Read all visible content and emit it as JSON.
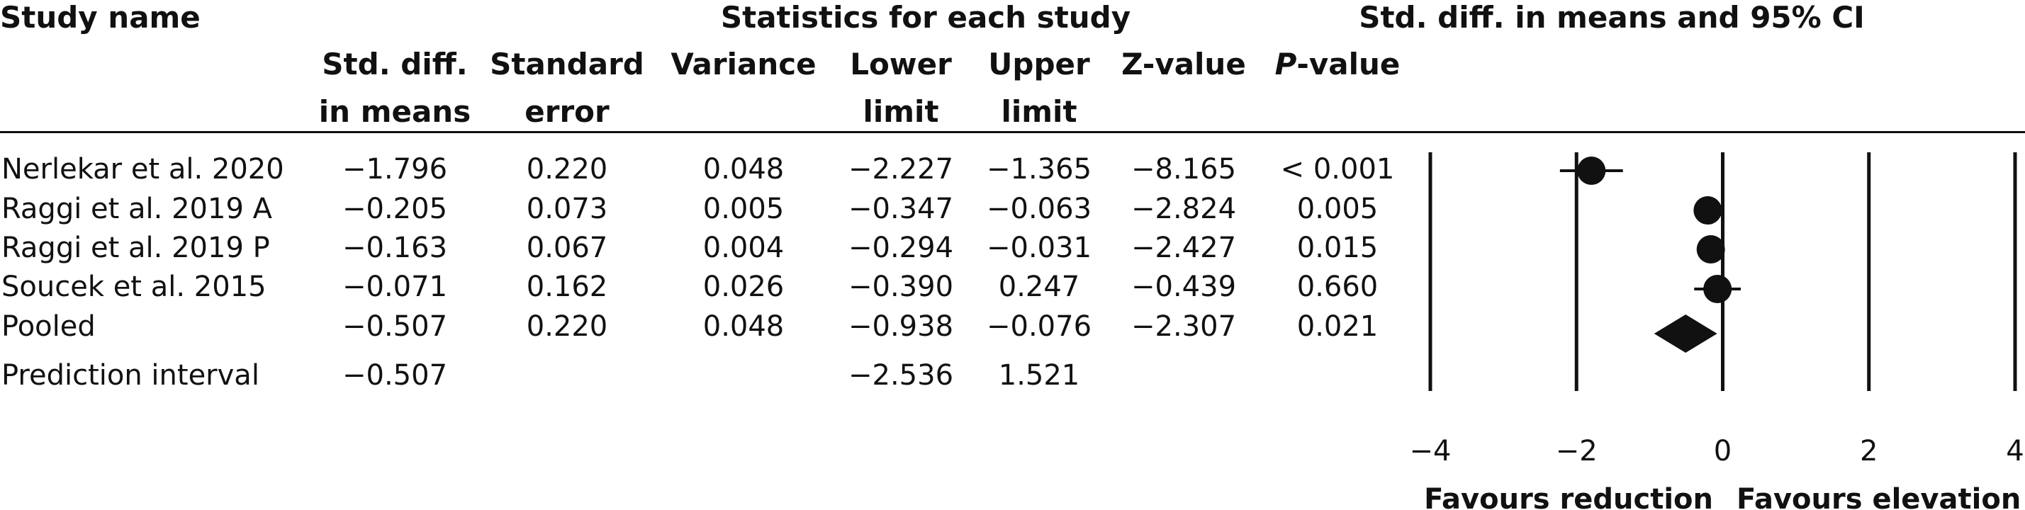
{
  "headers": {
    "study_name": "Study name",
    "stats_group": "Statistics for each study",
    "plot_title": "Std. diff. in means and 95% CI",
    "columns": [
      {
        "key": "smd",
        "line1": "Std. diff.",
        "line2": "in means"
      },
      {
        "key": "se",
        "line1": "Standard",
        "line2": "error"
      },
      {
        "key": "var",
        "line1": "Variance",
        "line2": ""
      },
      {
        "key": "lower",
        "line1": "Lower",
        "line2": "limit"
      },
      {
        "key": "upper",
        "line1": "Upper",
        "line2": "limit"
      },
      {
        "key": "z",
        "line1": "Z-value",
        "line2": ""
      },
      {
        "key": "p",
        "line1": "P-value",
        "line2": ""
      }
    ]
  },
  "rows": [
    {
      "name": "Nerlekar et al. 2020",
      "smd": "−1.796",
      "se": "0.220",
      "var": "0.048",
      "lower": "−2.227",
      "upper": "−1.365",
      "z": "−8.165",
      "p": "< 0.001"
    },
    {
      "name": "Raggi et al. 2019 A",
      "smd": "−0.205",
      "se": "0.073",
      "var": "0.005",
      "lower": "−0.347",
      "upper": "−0.063",
      "z": "−2.824",
      "p": "0.005"
    },
    {
      "name": "Raggi et al. 2019 P",
      "smd": "−0.163",
      "se": "0.067",
      "var": "0.004",
      "lower": "−0.294",
      "upper": "−0.031",
      "z": "−2.427",
      "p": "0.015"
    },
    {
      "name": "Soucek et al. 2015",
      "smd": "−0.071",
      "se": "0.162",
      "var": "0.026",
      "lower": "−0.390",
      "upper": "0.247",
      "z": "−0.439",
      "p": "0.660"
    },
    {
      "name": "Pooled",
      "smd": "−0.507",
      "se": "0.220",
      "var": "0.048",
      "lower": "−0.938",
      "upper": "−0.076",
      "z": "−2.307",
      "p": "0.021"
    },
    {
      "name": "Prediction interval",
      "smd": "−0.507",
      "se": "",
      "var": "",
      "lower": "−2.536",
      "upper": "1.521",
      "z": "",
      "p": ""
    }
  ],
  "chart_data": {
    "type": "forest",
    "x_ticks": [
      -4,
      -2,
      0,
      2,
      4
    ],
    "x_tick_labels": [
      "−4",
      "−2",
      "0",
      "2",
      "4"
    ],
    "xlim": [
      -4,
      4
    ],
    "vertical_lines_at": [
      -4,
      -2,
      0,
      2,
      4
    ],
    "favours_left": "Favours reduction",
    "favours_right": "Favours elevation",
    "studies": [
      {
        "name": "Nerlekar et al. 2020",
        "estimate": -1.796,
        "lower": -2.227,
        "upper": -1.365
      },
      {
        "name": "Raggi et al. 2019 A",
        "estimate": -0.205,
        "lower": -0.347,
        "upper": -0.063
      },
      {
        "name": "Raggi et al. 2019 P",
        "estimate": -0.163,
        "lower": -0.294,
        "upper": -0.031
      },
      {
        "name": "Soucek et al. 2015",
        "estimate": -0.071,
        "lower": -0.39,
        "upper": 0.247
      }
    ],
    "pooled": {
      "estimate": -0.507,
      "lower": -0.938,
      "upper": -0.076
    }
  }
}
